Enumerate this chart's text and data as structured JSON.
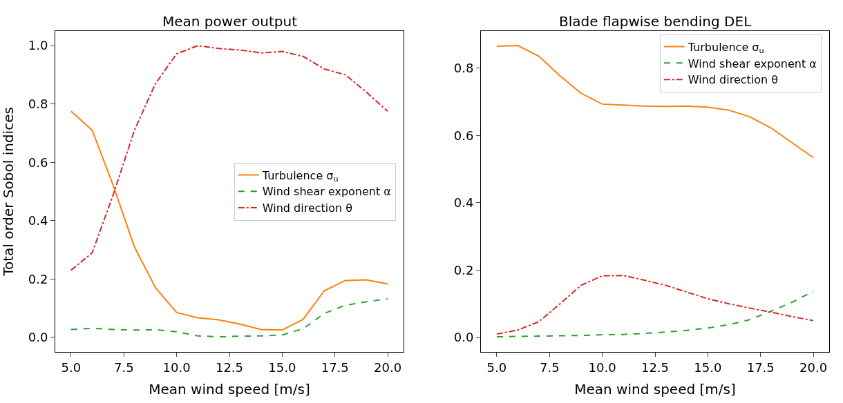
{
  "chart_data": [
    {
      "type": "line",
      "title": "Mean power output",
      "xlabel": "Mean wind speed [m/s]",
      "ylabel": "Total order Sobol indices",
      "x": [
        5,
        6,
        7,
        8,
        9,
        10,
        11,
        12,
        13,
        14,
        15,
        16,
        17,
        18,
        19,
        20
      ],
      "series": [
        {
          "name": "Turbulence σ$_{u}$",
          "color": "#ff7f0e",
          "line_style": "solid",
          "values": [
            0.775,
            0.71,
            0.52,
            0.31,
            0.17,
            0.085,
            0.067,
            0.06,
            0.045,
            0.027,
            0.025,
            0.062,
            0.16,
            0.195,
            0.197,
            0.183
          ]
        },
        {
          "name": "Wind shear exponent α",
          "color": "#2ca02c",
          "line_style": "dashed",
          "values": [
            0.027,
            0.031,
            0.027,
            0.025,
            0.026,
            0.019,
            0.005,
            0.002,
            0.004,
            0.005,
            0.008,
            0.03,
            0.082,
            0.11,
            0.122,
            0.132
          ]
        },
        {
          "name": "Wind direction θ",
          "color": "#d62728",
          "line_style": "dashdot",
          "values": [
            0.23,
            0.29,
            0.49,
            0.71,
            0.87,
            0.972,
            1.0,
            0.99,
            0.985,
            0.975,
            0.98,
            0.963,
            0.92,
            0.9,
            0.84,
            0.775
          ]
        }
      ],
      "xlim": [
        4.25,
        20.75
      ],
      "ylim": [
        -0.05,
        1.05
      ],
      "xticks": [
        {
          "value": 5,
          "label": "5.0"
        },
        {
          "value": 7.5,
          "label": "7.5"
        },
        {
          "value": 10,
          "label": "10.0"
        },
        {
          "value": 12.5,
          "label": "12.5"
        },
        {
          "value": 15,
          "label": "15.0"
        },
        {
          "value": 17.5,
          "label": "17.5"
        },
        {
          "value": 20,
          "label": "20.0"
        }
      ],
      "yticks": [
        {
          "value": 0,
          "label": "0.0"
        },
        {
          "value": 0.2,
          "label": "0.2"
        },
        {
          "value": 0.4,
          "label": "0.4"
        },
        {
          "value": 0.6,
          "label": "0.6"
        },
        {
          "value": 0.8,
          "label": "0.8"
        },
        {
          "value": 1.0,
          "label": "1.0"
        }
      ],
      "legend": "right",
      "marker": "none"
    },
    {
      "type": "line",
      "title": "Blade flapwise bending DEL",
      "xlabel": "Mean wind speed [m/s]",
      "x": [
        5,
        6,
        7,
        8,
        9,
        10,
        11,
        12,
        13,
        14,
        15,
        16,
        17,
        18,
        19,
        20
      ],
      "series": [
        {
          "name": "Turbulence σ$_{u}$",
          "color": "#ff7f0e",
          "line_style": "solid",
          "values": [
            0.865,
            0.867,
            0.835,
            0.777,
            0.725,
            0.693,
            0.69,
            0.687,
            0.686,
            0.687,
            0.684,
            0.675,
            0.655,
            0.622,
            0.578,
            0.534
          ]
        },
        {
          "name": "Wind shear exponent α",
          "color": "#2ca02c",
          "line_style": "dashed",
          "values": [
            0.002,
            0.003,
            0.004,
            0.005,
            0.006,
            0.008,
            0.009,
            0.012,
            0.016,
            0.021,
            0.028,
            0.038,
            0.053,
            0.078,
            0.105,
            0.137
          ]
        },
        {
          "name": "Wind direction θ",
          "color": "#d62728",
          "line_style": "dashdot",
          "values": [
            0.01,
            0.022,
            0.047,
            0.1,
            0.155,
            0.183,
            0.184,
            0.17,
            0.155,
            0.135,
            0.115,
            0.1,
            0.087,
            0.075,
            0.062,
            0.05
          ]
        }
      ],
      "xlim": [
        4.25,
        20.75
      ],
      "ylim": [
        -0.043,
        0.91
      ],
      "xticks": [
        {
          "value": 5,
          "label": "5.0"
        },
        {
          "value": 7.5,
          "label": "7.5"
        },
        {
          "value": 10,
          "label": "10.0"
        },
        {
          "value": 12.5,
          "label": "12.5"
        },
        {
          "value": 15,
          "label": "15.0"
        },
        {
          "value": 17.5,
          "label": "17.5"
        },
        {
          "value": 20,
          "label": "20.0"
        }
      ],
      "yticks": [
        {
          "value": 0,
          "label": "0.0"
        },
        {
          "value": 0.2,
          "label": "0.2"
        },
        {
          "value": 0.4,
          "label": "0.4"
        },
        {
          "value": 0.6,
          "label": "0.6"
        },
        {
          "value": 0.8,
          "label": "0.8"
        }
      ],
      "legend": "top right",
      "marker": "none"
    }
  ]
}
